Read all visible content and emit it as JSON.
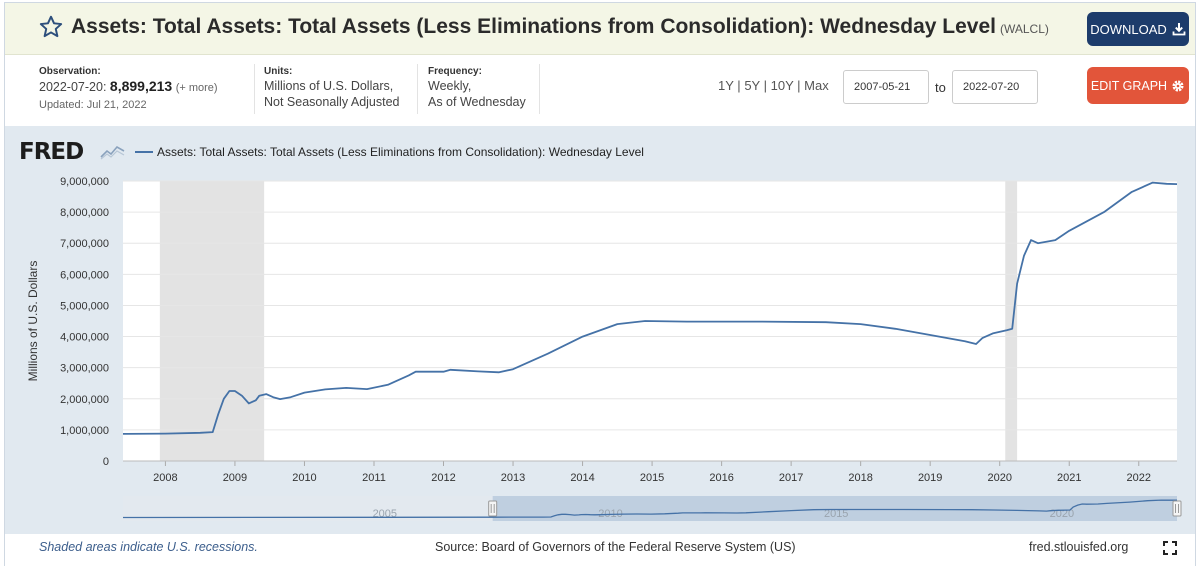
{
  "header": {
    "title": "Assets: Total Assets: Total Assets (Less Eliminations from Consolidation): Wednesday Level",
    "series_code": "(WALCL)",
    "download_label": "DOWNLOAD",
    "download_icon": "download-icon",
    "favorite_icon": "star-outline-icon"
  },
  "info": {
    "observation_label": "Observation:",
    "observation_date": "2022-07-20:",
    "observation_value": "8,899,213",
    "observation_more": "(+ more)",
    "updated": "Updated: Jul 21, 2022",
    "units_label": "Units:",
    "units_line1": "Millions of U.S. Dollars,",
    "units_line2": "Not Seasonally Adjusted",
    "frequency_label": "Frequency:",
    "frequency_line1": "Weekly,",
    "frequency_line2": "As of Wednesday",
    "range_links": [
      "1Y",
      "5Y",
      "10Y",
      "Max"
    ],
    "range_separator": "|",
    "start_date": "2007-05-21",
    "end_date": "2022-07-20",
    "to_label": "to",
    "edit_graph_label": "EDIT GRAPH",
    "edit_icon": "gear-icon"
  },
  "brand": {
    "logo_text": "FRED",
    "accent": "#4572a7",
    "recession_shade": "#e3e3e3",
    "download_bg": "#1d3c6b",
    "edit_bg": "#e2553a"
  },
  "footer": {
    "recession_note": "Shaded areas indicate U.S. recessions.",
    "source": "Source: Board of Governors of the Federal Reserve System (US)",
    "url": "fred.stlouisfed.org",
    "fullscreen_icon": "fullscreen-icon"
  },
  "chart_data": {
    "type": "line",
    "title": "Assets: Total Assets: Total Assets (Less Eliminations from Consolidation): Wednesday Level",
    "ylabel": "Millions of U.S. Dollars",
    "xlabel": "",
    "x_range": [
      2007.39,
      2022.55
    ],
    "ylim": [
      0,
      9000000
    ],
    "yticks": [
      0,
      1000000,
      2000000,
      3000000,
      4000000,
      5000000,
      6000000,
      7000000,
      8000000,
      9000000
    ],
    "ytick_labels": [
      "0",
      "1,000,000",
      "2,000,000",
      "3,000,000",
      "4,000,000",
      "5,000,000",
      "6,000,000",
      "7,000,000",
      "8,000,000",
      "9,000,000"
    ],
    "xticks": [
      2008,
      2009,
      2010,
      2011,
      2012,
      2013,
      2014,
      2015,
      2016,
      2017,
      2018,
      2019,
      2020,
      2021,
      2022
    ],
    "grid": true,
    "legend": "top-left",
    "recessions": [
      [
        2007.92,
        2009.42
      ],
      [
        2020.08,
        2020.25
      ]
    ],
    "series": [
      {
        "name": "Assets: Total Assets: Total Assets (Less Eliminations from Consolidation): Wednesday Level",
        "color": "#4572a7",
        "points": [
          [
            2007.39,
            870000
          ],
          [
            2008.0,
            880000
          ],
          [
            2008.5,
            905000
          ],
          [
            2008.68,
            930000
          ],
          [
            2008.76,
            1500000
          ],
          [
            2008.84,
            2000000
          ],
          [
            2008.92,
            2250000
          ],
          [
            2009.0,
            2250000
          ],
          [
            2009.1,
            2100000
          ],
          [
            2009.2,
            1850000
          ],
          [
            2009.3,
            1950000
          ],
          [
            2009.35,
            2100000
          ],
          [
            2009.45,
            2150000
          ],
          [
            2009.55,
            2050000
          ],
          [
            2009.65,
            1990000
          ],
          [
            2009.8,
            2050000
          ],
          [
            2010.0,
            2200000
          ],
          [
            2010.3,
            2300000
          ],
          [
            2010.6,
            2350000
          ],
          [
            2010.9,
            2310000
          ],
          [
            2011.2,
            2450000
          ],
          [
            2011.5,
            2750000
          ],
          [
            2011.6,
            2870000
          ],
          [
            2011.9,
            2870000
          ],
          [
            2012.0,
            2870000
          ],
          [
            2012.1,
            2930000
          ],
          [
            2012.5,
            2880000
          ],
          [
            2012.8,
            2850000
          ],
          [
            2013.0,
            2950000
          ],
          [
            2013.5,
            3450000
          ],
          [
            2014.0,
            4000000
          ],
          [
            2014.5,
            4400000
          ],
          [
            2014.9,
            4500000
          ],
          [
            2015.5,
            4480000
          ],
          [
            2016.5,
            4480000
          ],
          [
            2017.5,
            4460000
          ],
          [
            2018.0,
            4400000
          ],
          [
            2018.5,
            4250000
          ],
          [
            2019.0,
            4050000
          ],
          [
            2019.5,
            3850000
          ],
          [
            2019.66,
            3760000
          ],
          [
            2019.75,
            3950000
          ],
          [
            2019.9,
            4100000
          ],
          [
            2020.1,
            4200000
          ],
          [
            2020.18,
            4250000
          ],
          [
            2020.25,
            5700000
          ],
          [
            2020.35,
            6600000
          ],
          [
            2020.45,
            7100000
          ],
          [
            2020.55,
            7000000
          ],
          [
            2020.8,
            7100000
          ],
          [
            2021.0,
            7400000
          ],
          [
            2021.5,
            8000000
          ],
          [
            2021.9,
            8650000
          ],
          [
            2022.2,
            8950000
          ],
          [
            2022.4,
            8910000
          ],
          [
            2022.55,
            8899213
          ]
        ]
      }
    ],
    "navigator": {
      "x_range": [
        1999.2,
        2022.55
      ],
      "labels": [
        "2005",
        "2010",
        "2015",
        "2020"
      ],
      "label_years": [
        2005,
        2010,
        2015,
        2020
      ]
    }
  }
}
